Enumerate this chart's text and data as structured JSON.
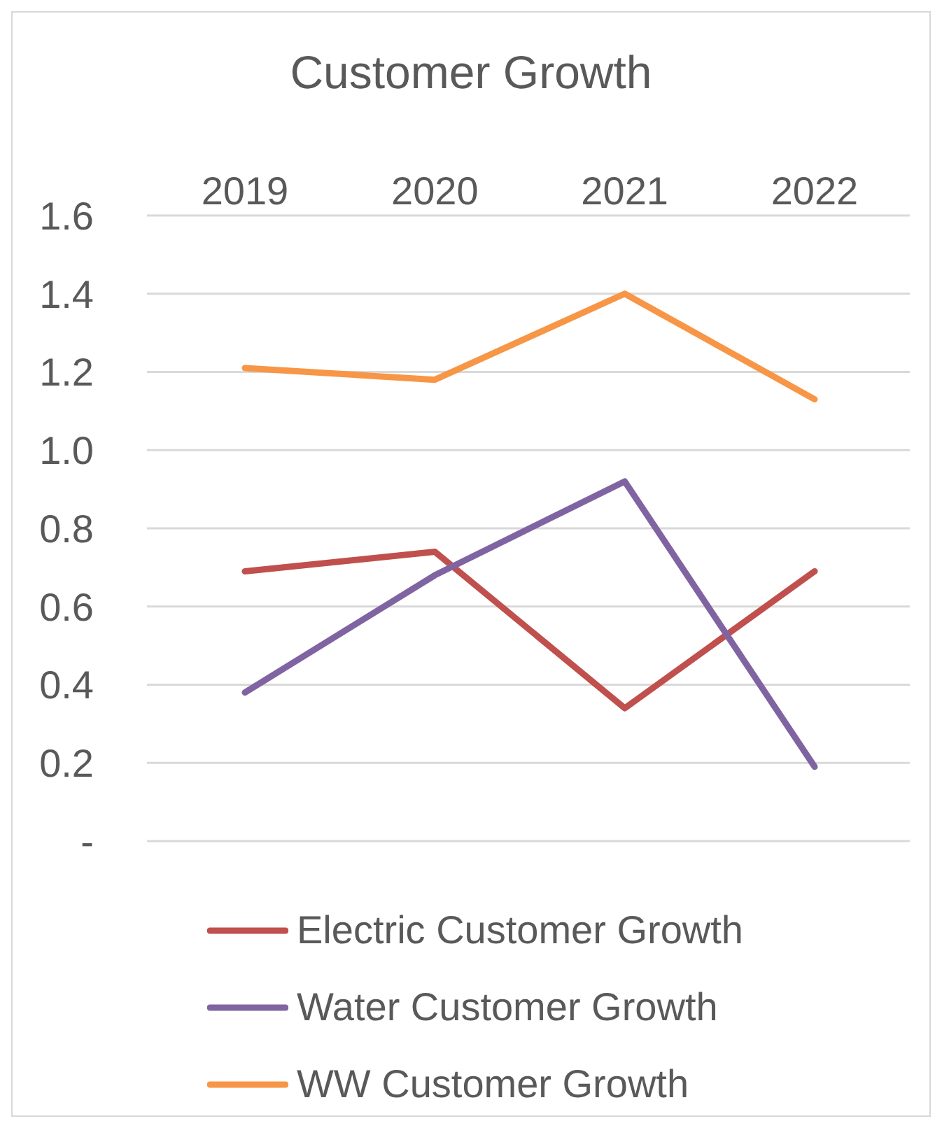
{
  "chart_data": {
    "type": "line",
    "title": "Customer Growth",
    "categories": [
      "2019",
      "2020",
      "2021",
      "2022"
    ],
    "series": [
      {
        "name": "Electric Customer Growth",
        "color": "#c0504d",
        "values": [
          0.69,
          0.74,
          0.34,
          0.69
        ]
      },
      {
        "name": "Water Customer Growth",
        "color": "#8064a2",
        "values": [
          0.38,
          0.68,
          0.92,
          0.19
        ]
      },
      {
        "name": "WW Customer Growth",
        "color": "#f79646",
        "values": [
          1.21,
          1.18,
          1.4,
          1.13
        ]
      }
    ],
    "ylim": [
      0,
      1.6
    ],
    "yticks": [
      {
        "value": 0,
        "label": "-"
      },
      0.2,
      0.4,
      0.6,
      0.8,
      {
        "value": 1,
        "label": "1.0"
      },
      1.2,
      1.4,
      1.6
    ],
    "grid": "y",
    "legend": "bottom",
    "marker": "none",
    "line_style": "solid"
  }
}
